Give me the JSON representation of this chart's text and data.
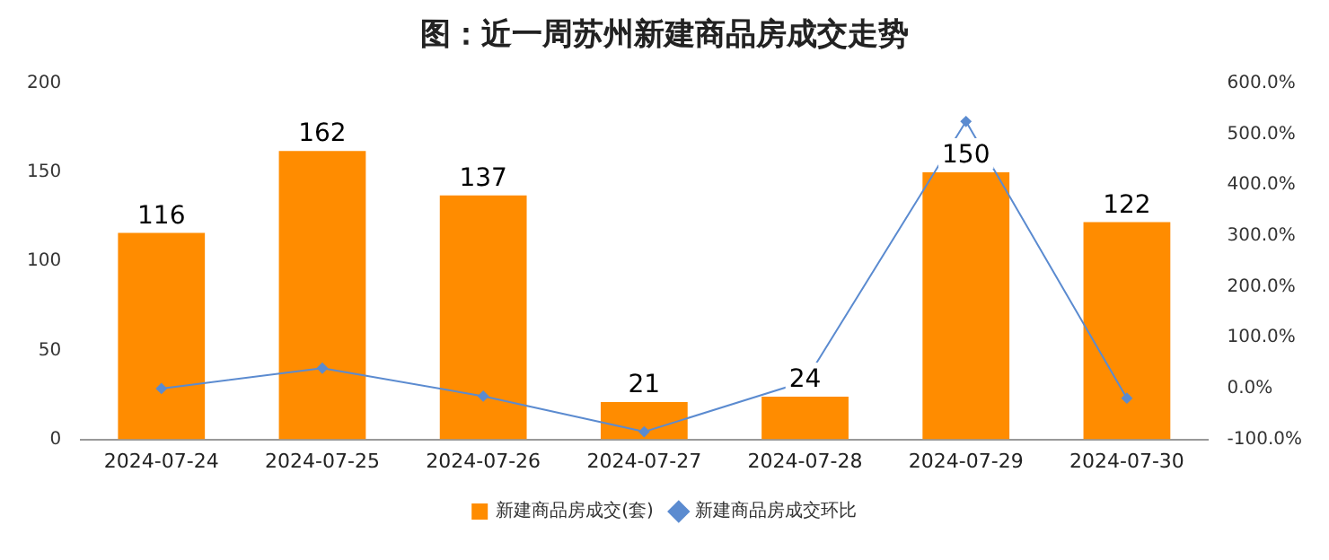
{
  "chart_data": {
    "type": "bar",
    "title": "图：近一周苏州新建商品房成交走势",
    "categories": [
      "2024-07-24",
      "2024-07-25",
      "2024-07-26",
      "2024-07-27",
      "2024-07-28",
      "2024-07-29",
      "2024-07-30"
    ],
    "series": [
      {
        "name": "新建商品房成交(套)",
        "color": "#ff8c00",
        "values": [
          116,
          162,
          137,
          21,
          24,
          150,
          122
        ],
        "value_labels": [
          "116",
          "162",
          "137",
          "21",
          "24",
          "150",
          "122"
        ]
      },
      {
        "name": "新建商品房成交环比",
        "type": "line",
        "axis": "y2",
        "color": "#5b8bd0",
        "marker": "diamond",
        "values": [
          0,
          40,
          -15,
          -85,
          14,
          525,
          -19
        ]
      }
    ],
    "ylim": [
      0,
      200
    ],
    "yticks": [
      0,
      50,
      100,
      150,
      200
    ],
    "y2lim": [
      -100,
      600
    ],
    "y2ticks": [
      {
        "value": -100,
        "label": "-100.0%"
      },
      {
        "value": 0,
        "label": "0.0%"
      },
      {
        "value": 100,
        "label": "100.0%"
      },
      {
        "value": 200,
        "label": "200.0%"
      },
      {
        "value": 300,
        "label": "300.0%"
      },
      {
        "value": 400,
        "label": "400.0%"
      },
      {
        "value": 500,
        "label": "500.0%"
      },
      {
        "value": 600,
        "label": "600.0%"
      }
    ],
    "grid": false,
    "legend": "bottom"
  }
}
